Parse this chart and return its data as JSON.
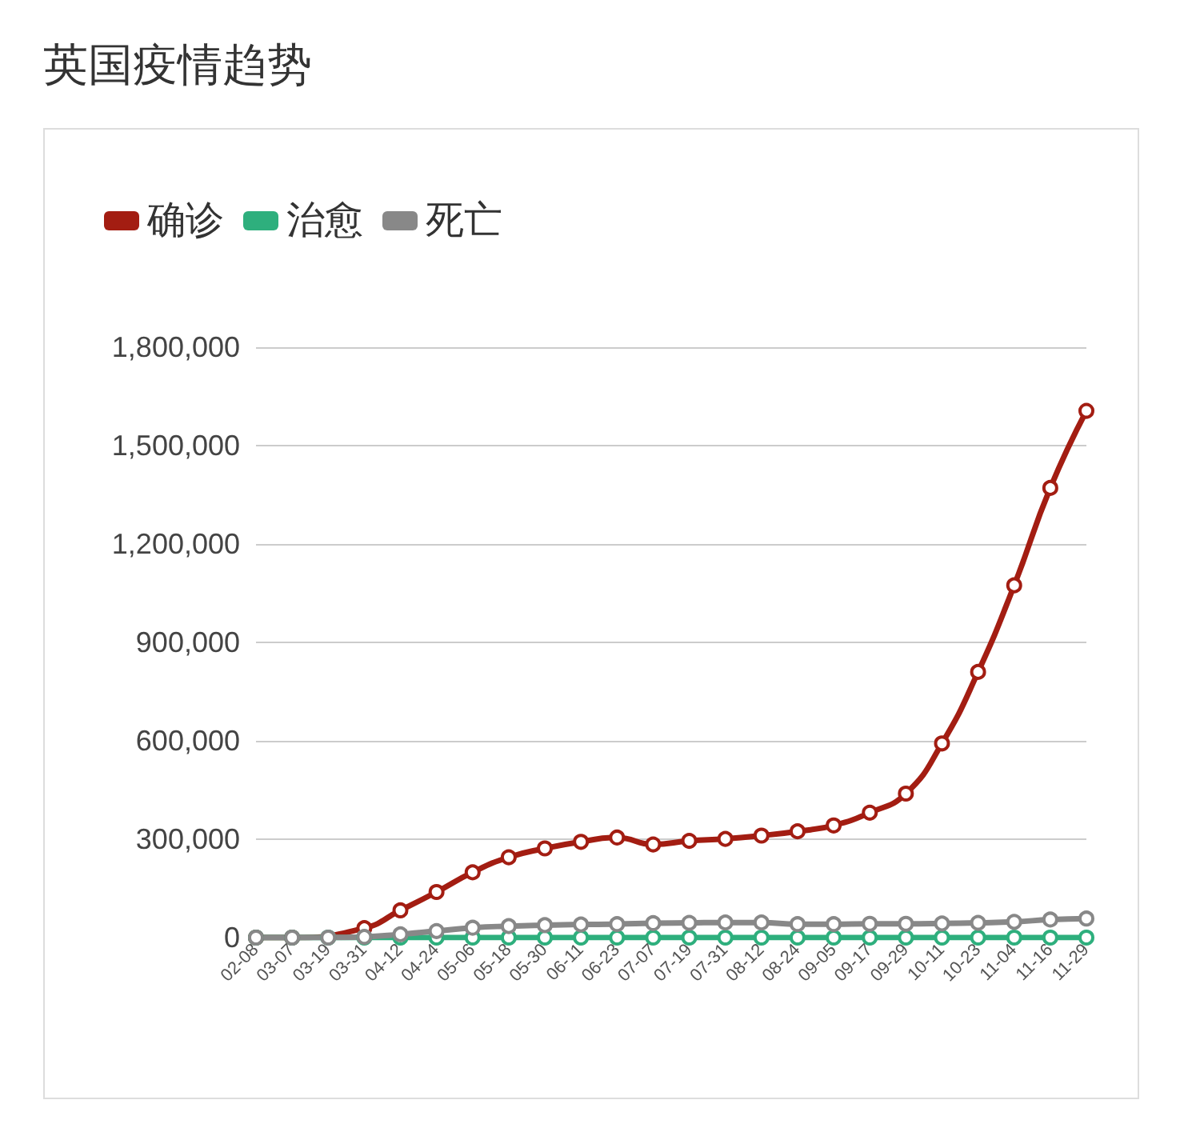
{
  "chart_data": {
    "type": "line",
    "title": "英国疫情趋势",
    "categories": [
      "02-08",
      "03-07",
      "03-19",
      "03-31",
      "04-12",
      "04-24",
      "05-06",
      "05-18",
      "05-30",
      "06-11",
      "06-23",
      "07-07",
      "07-19",
      "07-31",
      "08-12",
      "08-24",
      "09-05",
      "09-17",
      "09-29",
      "10-11",
      "10-23",
      "11-04",
      "11-16",
      "11-29"
    ],
    "series": [
      {
        "name": "确诊",
        "color": "#a31d12",
        "values": [
          0,
          0,
          null,
          29000,
          83000,
          139000,
          199000,
          245000,
          272000,
          292000,
          305000,
          284000,
          295000,
          301000,
          311000,
          324000,
          342000,
          381000,
          439000,
          592000,
          810000,
          1074000,
          1371000,
          1606000
        ]
      },
      {
        "name": "治愈",
        "color": "#2eaf7d",
        "values": [
          0,
          0,
          0,
          0,
          0,
          0,
          0,
          0,
          0,
          0,
          0,
          0,
          0,
          0,
          0,
          0,
          0,
          0,
          0,
          0,
          0,
          0,
          0,
          0
        ]
      },
      {
        "name": "死亡",
        "color": "#888888",
        "values": [
          0,
          0,
          0,
          2000,
          10000,
          20000,
          30000,
          35000,
          38000,
          40000,
          41000,
          44000,
          45000,
          46000,
          46000,
          41000,
          41000,
          42000,
          42000,
          43000,
          45000,
          48000,
          55000,
          58000
        ]
      }
    ],
    "ylim": [
      0,
      1800000
    ],
    "yticks": [
      0,
      {
        "value": 300000,
        "label": "300,000"
      },
      {
        "value": 600000,
        "label": "600,000"
      },
      {
        "value": 900000,
        "label": "900,000"
      },
      {
        "value": 1200000,
        "label": "1,200,000"
      },
      {
        "value": 1500000,
        "label": "1,500,000"
      },
      {
        "value": 1800000,
        "label": "1,800,000"
      }
    ],
    "grid": "y",
    "legend": "top left",
    "marker": "circle",
    "line_style": "solid"
  }
}
